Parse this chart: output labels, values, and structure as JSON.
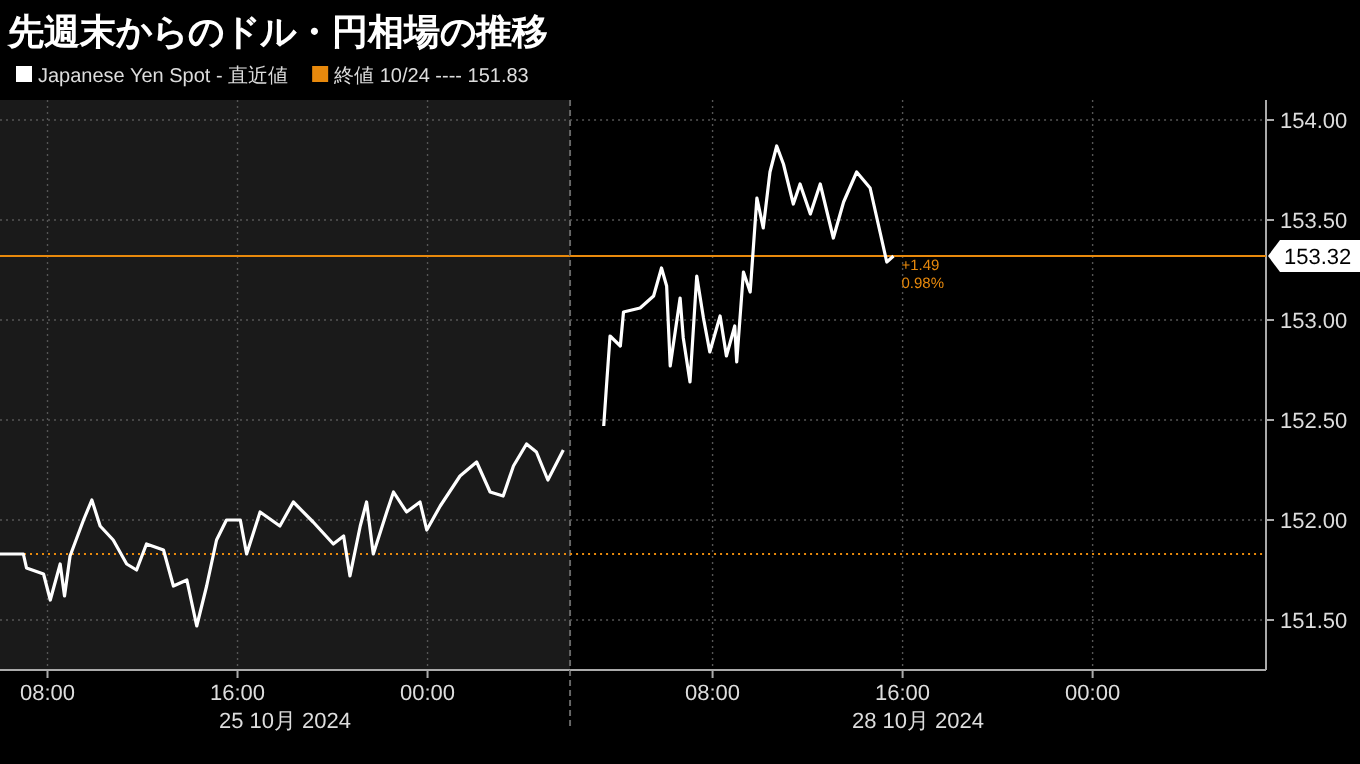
{
  "chart_data": [
    {
      "type": "line",
      "title": "先週末からのドル・円相場の推移",
      "series": [
        {
          "name": "Japanese Yen Spot - 直近値",
          "color": "#ffffff",
          "x": [
            "2024-10-25T06:00",
            "2024-10-25T06:59",
            "2024-10-25T07:07",
            "2024-10-25T07:50",
            "2024-10-25T08:07",
            "2024-10-25T08:32",
            "2024-10-25T08:43",
            "2024-10-25T08:57",
            "2024-10-25T09:31",
            "2024-10-25T09:52",
            "2024-10-25T10:13",
            "2024-10-25T10:46",
            "2024-10-25T11:20",
            "2024-10-25T11:45",
            "2024-10-25T12:10",
            "2024-10-25T12:53",
            "2024-10-25T13:18",
            "2024-10-25T13:52",
            "2024-10-25T14:17",
            "2024-10-25T14:42",
            "2024-10-25T15:07",
            "2024-10-25T15:32",
            "2024-10-25T16:07",
            "2024-10-25T16:23",
            "2024-10-25T16:57",
            "2024-10-25T17:47",
            "2024-10-25T18:21",
            "2024-10-25T19:11",
            "2024-10-25T20:02",
            "2024-10-25T20:28",
            "2024-10-25T20:44",
            "2024-10-25T21:10",
            "2024-10-25T21:26",
            "2024-10-25T21:43",
            "2024-10-25T22:17",
            "2024-10-25T22:34",
            "2024-10-25T23:07",
            "2024-10-25T23:41",
            "2024-10-25T23:58",
            "2024-10-26T00:32",
            "2024-10-26T01:22",
            "2024-10-26T02:04",
            "2024-10-26T02:38",
            "2024-10-26T03:11",
            "2024-10-26T03:37",
            "2024-10-26T04:10",
            "2024-10-26T04:35",
            "2024-10-26T05:04",
            "2024-10-26T05:43"
          ],
          "values": [
            151.83,
            151.83,
            151.76,
            151.73,
            151.6,
            151.78,
            151.62,
            151.82,
            152.0,
            152.1,
            151.97,
            151.9,
            151.78,
            151.75,
            151.88,
            151.85,
            151.67,
            151.7,
            151.47,
            151.67,
            151.9,
            152.0,
            152.0,
            151.83,
            152.04,
            151.97,
            152.09,
            151.99,
            151.88,
            151.92,
            151.72,
            151.97,
            152.09,
            151.83,
            152.04,
            152.14,
            152.04,
            152.09,
            151.95,
            152.07,
            152.22,
            152.29,
            152.14,
            152.12,
            152.27,
            152.38,
            152.34,
            152.2,
            152.35
          ]
        }
      ],
      "xlim": [
        "2024-10-25T06:00",
        "2024-10-26T06:00"
      ],
      "xticks": [
        {
          "value": "2024-10-25T08:00",
          "label": "08:00"
        },
        {
          "value": "2024-10-25T16:00",
          "label": "16:00"
        },
        {
          "value": "2024-10-26T00:00",
          "label": "00:00"
        }
      ],
      "ylim": [
        151.25,
        154.1
      ],
      "yticks": [
        151.5,
        152,
        152.5,
        153,
        153.5,
        154
      ],
      "tick_labels": "x",
      "ref_lines": [
        {
          "axis": "y",
          "value": 151.83,
          "label": "終値 10/24 ---- 151.83",
          "color": "#e8890c",
          "line_style": "dotted"
        },
        {
          "axis": "y",
          "value": 153.32,
          "color": "#e8890c",
          "line_style": "solid"
        }
      ],
      "bands": [
        {
          "axis": "x",
          "from": "2024-10-25T06:00",
          "to": "2024-10-26T06:00",
          "color": "#1a1a1a"
        }
      ],
      "annotations": [
        "25 10月 2024"
      ],
      "grid": true,
      "legend": "top left",
      "marker": "none",
      "line_style": "solid"
    },
    {
      "type": "line",
      "series": [
        {
          "color": "#ffffff",
          "x": [
            "2024-10-28T03:25",
            "2024-10-28T03:32",
            "2024-10-28T03:41",
            "2024-10-28T04:07",
            "2024-10-28T04:15",
            "2024-10-28T04:57",
            "2024-10-28T05:31",
            "2024-10-28T05:51",
            "2024-10-28T06:04",
            "2024-10-28T06:13",
            "2024-10-28T06:38",
            "2024-10-28T06:46",
            "2024-10-28T07:03",
            "2024-10-28T07:20",
            "2024-10-28T07:37",
            "2024-10-28T07:53",
            "2024-10-28T08:19",
            "2024-10-28T08:35",
            "2024-10-28T08:56",
            "2024-10-28T09:01",
            "2024-10-28T09:18",
            "2024-10-28T09:35",
            "2024-10-28T09:52",
            "2024-10-28T10:08",
            "2024-10-28T10:25",
            "2024-10-28T10:42",
            "2024-10-28T10:59",
            "2024-10-28T11:24",
            "2024-10-28T11:41",
            "2024-10-28T12:07",
            "2024-10-28T12:32",
            "2024-10-28T13:05",
            "2024-10-28T13:31",
            "2024-10-28T14:04",
            "2024-10-28T14:38",
            "2024-10-28T15:03",
            "2024-10-28T15:20",
            "2024-10-28T15:37"
          ],
          "values": [
            152.47,
            152.67,
            152.92,
            152.87,
            153.04,
            153.06,
            153.12,
            153.26,
            153.17,
            152.77,
            153.11,
            152.91,
            152.69,
            153.22,
            153.01,
            152.84,
            153.02,
            152.82,
            152.97,
            152.79,
            153.24,
            153.14,
            153.61,
            153.46,
            153.74,
            153.87,
            153.78,
            153.58,
            153.68,
            153.53,
            153.68,
            153.41,
            153.59,
            153.74,
            153.66,
            153.44,
            153.29,
            153.32
          ]
        }
      ],
      "xlim": [
        "2024-10-28T02:00",
        "2024-10-29T07:18"
      ],
      "xticks": [
        {
          "value": "2024-10-28T08:00",
          "label": "08:00"
        },
        {
          "value": "2024-10-28T16:00",
          "label": "16:00"
        },
        {
          "value": "2024-10-29T00:00",
          "label": "00:00"
        }
      ],
      "ylim": [
        151.25,
        154.1
      ],
      "yticks": [
        {
          "value": 151.5,
          "label": "151.50"
        },
        {
          "value": 152,
          "label": "152.00"
        },
        {
          "value": 152.5,
          "label": "152.50"
        },
        {
          "value": 153,
          "label": "153.00"
        },
        {
          "value": 153.5,
          "label": "153.50"
        },
        {
          "value": 154,
          "label": "154.00"
        }
      ],
      "ref_lines": [
        {
          "axis": "y",
          "value": 151.83,
          "color": "#e8890c",
          "line_style": "dotted"
        },
        {
          "axis": "y",
          "value": 153.32,
          "label": "153.32",
          "color": "#e8890c",
          "line_style": "solid"
        }
      ],
      "annotations": [
        "+1.49",
        "0.98%",
        "28 10月 2024"
      ],
      "grid": true,
      "marker": "none",
      "line_style": "solid"
    }
  ]
}
